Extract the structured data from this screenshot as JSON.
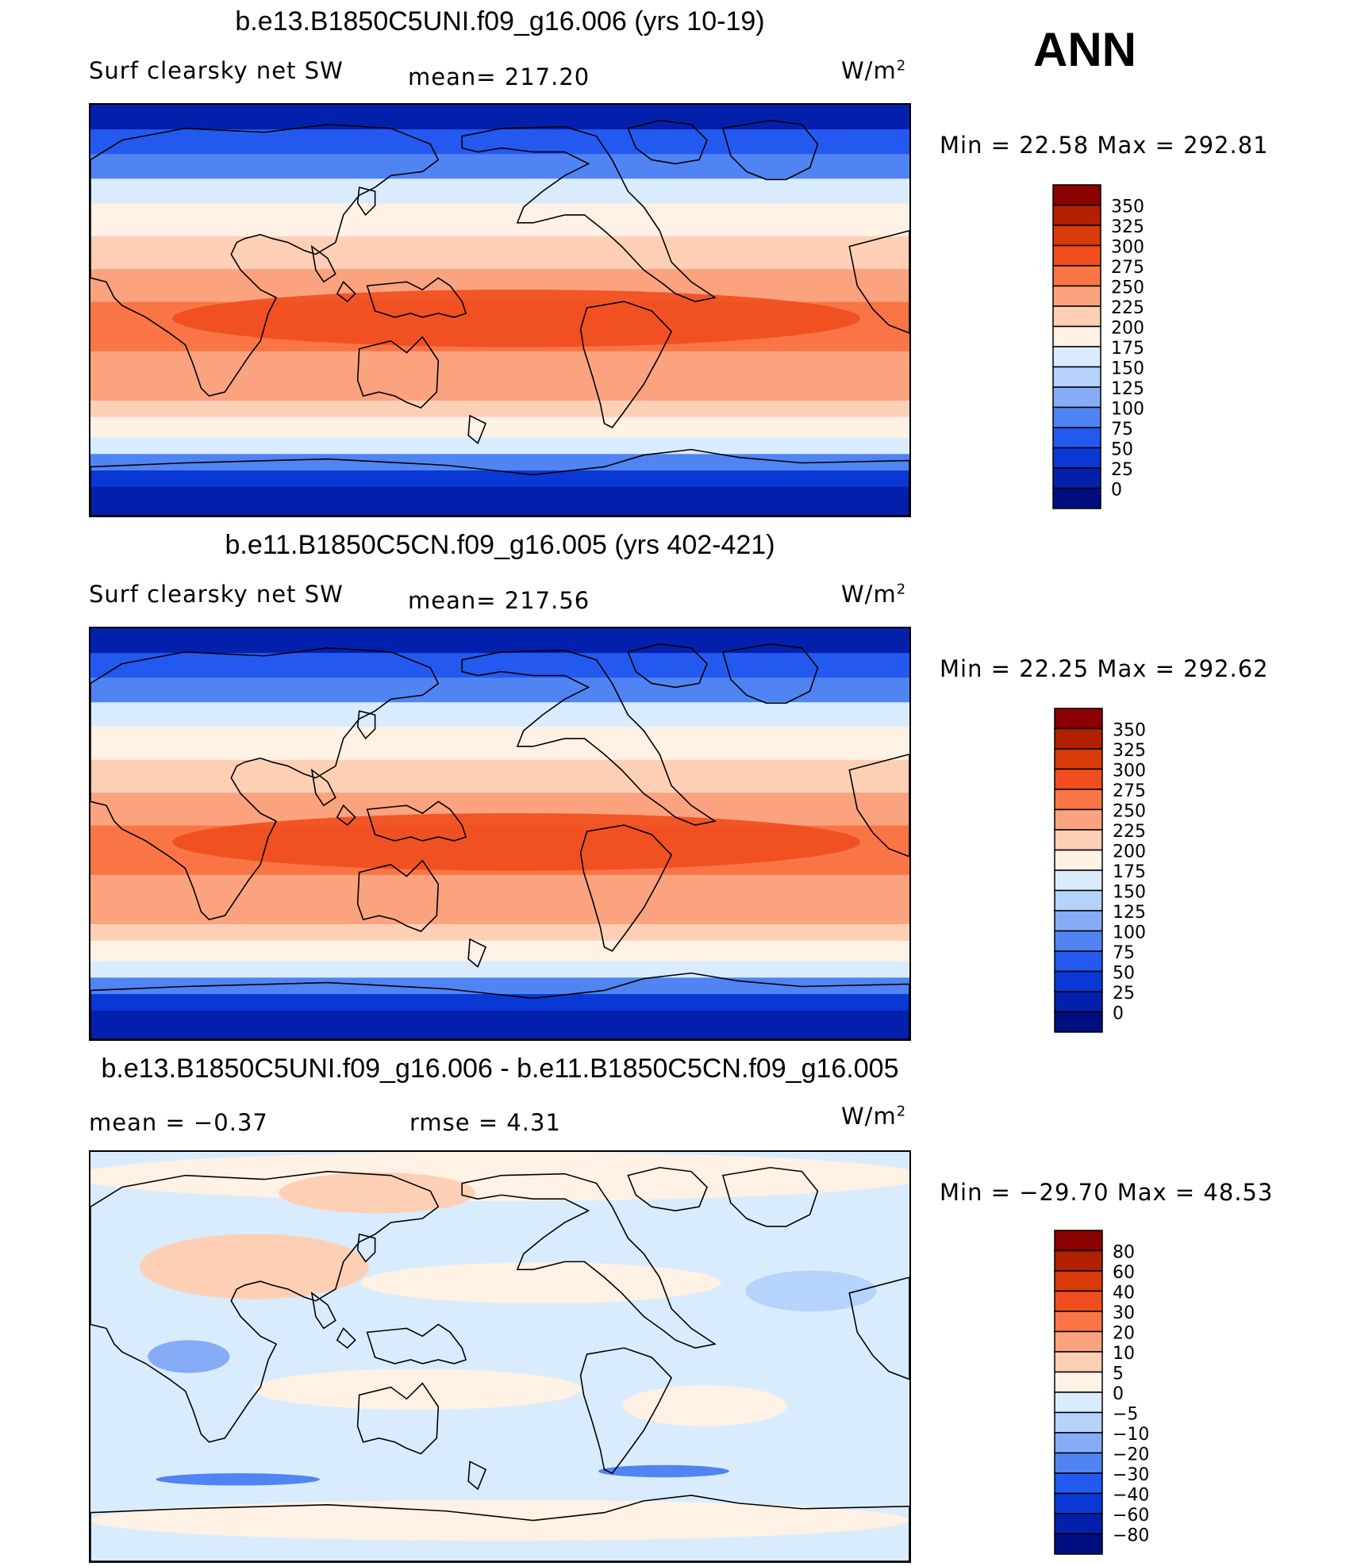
{
  "season": "ANN",
  "land_color": "#000000",
  "panels": [
    {
      "id": "p1",
      "title": "b.e13.B1850C5UNI.f09_g16.006 (yrs 10-19)",
      "left_label": "Surf clearsky net SW",
      "center_label": "mean= 217.20",
      "units": "W/m",
      "units_sup": "2",
      "min_max": "Min =   22.58 Max = 292.81",
      "field": "absolute",
      "colorbar": {
        "labels": [
          "350",
          "325",
          "300",
          "275",
          "250",
          "225",
          "200",
          "175",
          "150",
          "125",
          "100",
          "75",
          "50",
          "25",
          "0"
        ],
        "colors": [
          "#8b0000",
          "#b22000",
          "#d83a0a",
          "#f04e1e",
          "#f97546",
          "#fba27f",
          "#fdd0b6",
          "#fff1e4",
          "#d9ecfd",
          "#b5d3fc",
          "#86acf7",
          "#5084f3",
          "#2459f0",
          "#0a38d4",
          "#0320ac",
          "#000e80"
        ]
      }
    },
    {
      "id": "p2",
      "title": "b.e11.B1850C5CN.f09_g16.005 (yrs 402-421)",
      "left_label": "Surf clearsky net SW",
      "center_label": "mean= 217.56",
      "units": "W/m",
      "units_sup": "2",
      "min_max": "Min =   22.25 Max = 292.62",
      "field": "absolute",
      "colorbar": {
        "labels": [
          "350",
          "325",
          "300",
          "275",
          "250",
          "225",
          "200",
          "175",
          "150",
          "125",
          "100",
          "75",
          "50",
          "25",
          "0"
        ],
        "colors": [
          "#8b0000",
          "#b22000",
          "#d83a0a",
          "#f04e1e",
          "#f97546",
          "#fba27f",
          "#fdd0b6",
          "#fff1e4",
          "#d9ecfd",
          "#b5d3fc",
          "#86acf7",
          "#5084f3",
          "#2459f0",
          "#0a38d4",
          "#0320ac",
          "#000e80"
        ]
      }
    },
    {
      "id": "p3",
      "title": "b.e13.B1850C5UNI.f09_g16.006 - b.e11.B1850C5CN.f09_g16.005",
      "left_label": "mean =   −0.37",
      "center_label": "rmse =    4.31",
      "units": "W/m",
      "units_sup": "2",
      "min_max": "Min = −29.70 Max =  48.53",
      "field": "difference",
      "colorbar": {
        "labels": [
          "80",
          "60",
          "40",
          "30",
          "20",
          "10",
          "5",
          "0",
          "−5",
          "−10",
          "−20",
          "−30",
          "−40",
          "−60",
          "−80"
        ],
        "colors": [
          "#8b0000",
          "#b22000",
          "#d83a0a",
          "#f04e1e",
          "#f97546",
          "#fba27f",
          "#fdd0b6",
          "#fff1e4",
          "#d9ecfd",
          "#b5d3fc",
          "#86acf7",
          "#5084f3",
          "#2459f0",
          "#0a38d4",
          "#0320ac",
          "#000e80"
        ]
      }
    }
  ]
}
